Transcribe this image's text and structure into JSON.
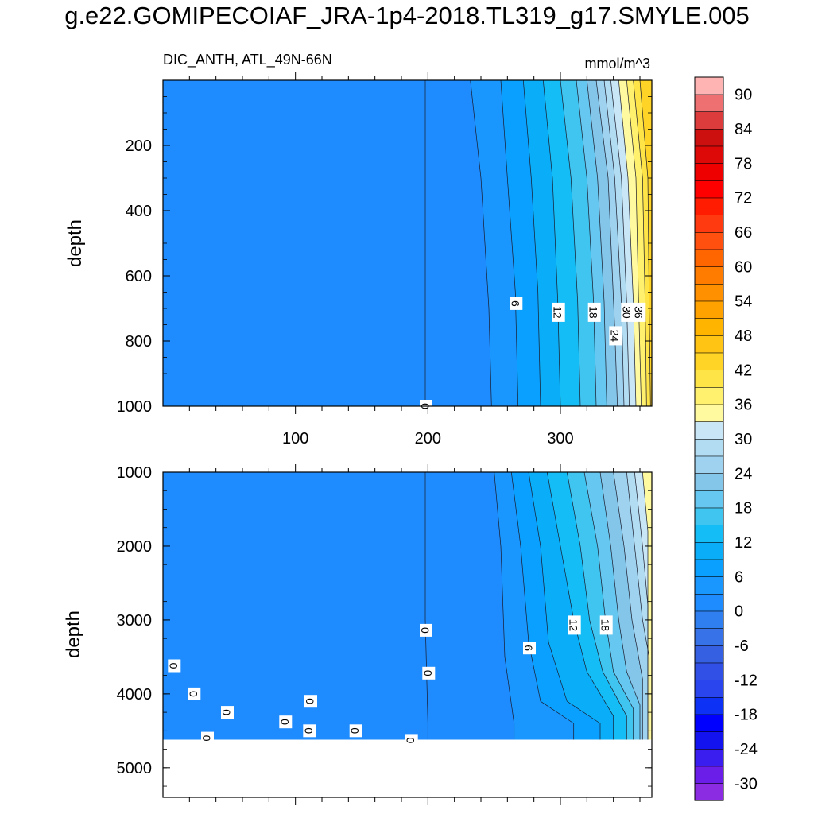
{
  "figure": {
    "title": "g.e22.GOMIPECOIAF_JRA-1p4-2018.TL319_g17.SMYLE.005"
  },
  "top_panel": {
    "left_label": "DIC_ANTH, ATL_49N-66N",
    "right_label": "mmol/m^3"
  },
  "colorbar": {
    "levels": [
      -33,
      -30,
      -27,
      -24,
      -21,
      -18,
      -15,
      -12,
      -9,
      -6,
      -3,
      0,
      3,
      6,
      9,
      12,
      15,
      18,
      21,
      24,
      27,
      30,
      33,
      36,
      39,
      42,
      45,
      48,
      51,
      54,
      57,
      60,
      63,
      66,
      69,
      72,
      75,
      78,
      81,
      84,
      87,
      90,
      93
    ],
    "tick_labels": [
      "-30",
      "-24",
      "-18",
      "-12",
      "-6",
      "0",
      "6",
      "12",
      "18",
      "24",
      "30",
      "36",
      "42",
      "48",
      "54",
      "60",
      "66",
      "72",
      "78",
      "84",
      "90"
    ],
    "colors": [
      "#8b2be2",
      "#6a1ee8",
      "#3a1ef0",
      "#1313ef",
      "#0000ff",
      "#0e32f5",
      "#2a45ee",
      "#3050e6",
      "#3560e2",
      "#3872e8",
      "#2f7ff0",
      "#1e8cff",
      "#1a96ff",
      "#0aa0ff",
      "#0aaef8",
      "#14bdf5",
      "#40c4f0",
      "#66c8f0",
      "#84c6ea",
      "#9ed2ee",
      "#b2dcf2",
      "#c8e6f6",
      "#fffaa0",
      "#fff06e",
      "#ffe448",
      "#ffd426",
      "#ffc414",
      "#ffb400",
      "#ffa200",
      "#ff9000",
      "#ff7c00",
      "#ff6600",
      "#ff5010",
      "#ff3a10",
      "#ff1c00",
      "#ff0000",
      "#ee0000",
      "#dd0808",
      "#cc1010",
      "#dc3c3c",
      "#ee7070",
      "#ffb4b4"
    ]
  },
  "chart_data": [
    {
      "type": "contour",
      "panel": "top",
      "xlim": [
        0,
        369
      ],
      "ylim": [
        1000,
        0
      ],
      "ylabel": "depth",
      "xticks": [
        "100",
        "200",
        "300"
      ],
      "yticks": [
        "200",
        "400",
        "600",
        "800",
        "1000"
      ],
      "contours": [
        {
          "level": 0,
          "label": "0",
          "points": [
            [
              198,
              0
            ],
            [
              198,
              1000
            ]
          ]
        },
        {
          "level": 3,
          "points": [
            [
              232,
              0
            ],
            [
              240,
              300
            ],
            [
              246,
              700
            ],
            [
              248,
              1000
            ]
          ]
        },
        {
          "level": 6,
          "label": "6",
          "points": [
            [
              255,
              0
            ],
            [
              260,
              300
            ],
            [
              266,
              650
            ],
            [
              268,
              1000
            ]
          ]
        },
        {
          "level": 9,
          "points": [
            [
              272,
              0
            ],
            [
              278,
              300
            ],
            [
              283,
              650
            ],
            [
              285,
              1000
            ]
          ]
        },
        {
          "level": 12,
          "label": "12",
          "points": [
            [
              287,
              0
            ],
            [
              294,
              300
            ],
            [
              298,
              680
            ],
            [
              300,
              1000
            ]
          ]
        },
        {
          "level": 15,
          "points": [
            [
              300,
              0
            ],
            [
              308,
              300
            ],
            [
              313,
              680
            ],
            [
              315,
              1000
            ]
          ]
        },
        {
          "level": 18,
          "label": "18",
          "points": [
            [
              312,
              0
            ],
            [
              320,
              300
            ],
            [
              325,
              680
            ],
            [
              327,
              1000
            ]
          ]
        },
        {
          "level": 21,
          "points": [
            [
              320,
              0
            ],
            [
              328,
              300
            ],
            [
              333,
              680
            ],
            [
              335,
              1000
            ]
          ]
        },
        {
          "level": 24,
          "label": "24",
          "points": [
            [
              327,
              0
            ],
            [
              336,
              300
            ],
            [
              341,
              760
            ],
            [
              343,
              1000
            ]
          ]
        },
        {
          "level": 27,
          "points": [
            [
              333,
              0
            ],
            [
              341,
              300
            ],
            [
              346,
              680
            ],
            [
              348,
              1000
            ]
          ]
        },
        {
          "level": 30,
          "label": "30",
          "points": [
            [
              338,
              0
            ],
            [
              346,
              300
            ],
            [
              350,
              680
            ],
            [
              352,
              1000
            ]
          ]
        },
        {
          "level": 33,
          "points": [
            [
              344,
              0
            ],
            [
              351,
              300
            ],
            [
              355,
              680
            ],
            [
              357,
              1000
            ]
          ]
        },
        {
          "level": 36,
          "label": "36",
          "points": [
            [
              350,
              0
            ],
            [
              357,
              300
            ],
            [
              359,
              680
            ],
            [
              361,
              1000
            ]
          ]
        },
        {
          "level": 39,
          "points": [
            [
              355,
              0
            ],
            [
              362,
              300
            ],
            [
              364,
              700
            ],
            [
              365,
              1000
            ]
          ]
        },
        {
          "level": 42,
          "points": [
            [
              360,
              0
            ],
            [
              366,
              300
            ],
            [
              367,
              700
            ],
            [
              368,
              1000
            ]
          ]
        }
      ]
    },
    {
      "type": "contour",
      "panel": "bottom",
      "xlim": [
        0,
        369
      ],
      "ylim": [
        5400,
        1000
      ],
      "ylabel": "depth",
      "yticks": [
        "1000",
        "2000",
        "3000",
        "4000",
        "5000"
      ],
      "valid_bottom": 4620,
      "contours": [
        {
          "level": 0,
          "label": "0",
          "points": [
            [
              198,
              1000
            ],
            [
              198,
              3000
            ],
            [
              200,
              4400
            ]
          ]
        },
        {
          "level": 3,
          "points": [
            [
              250,
              1000
            ],
            [
              255,
              2000
            ],
            [
              258,
              3500
            ],
            [
              265,
              4400
            ]
          ]
        },
        {
          "level": 6,
          "label": "6",
          "points": [
            [
              263,
              1000
            ],
            [
              270,
              2000
            ],
            [
              276,
              3300
            ],
            [
              285,
              4100
            ],
            [
              310,
              4400
            ]
          ]
        },
        {
          "level": 9,
          "points": [
            [
              276,
              1000
            ],
            [
              285,
              2000
            ],
            [
              291,
              3300
            ],
            [
              305,
              4100
            ],
            [
              330,
              4400
            ]
          ]
        },
        {
          "level": 12,
          "label": "12",
          "points": [
            [
              290,
              1000
            ],
            [
              300,
              2000
            ],
            [
              310,
              3000
            ],
            [
              320,
              3700
            ],
            [
              340,
              4300
            ]
          ]
        },
        {
          "level": 15,
          "points": [
            [
              305,
              1000
            ],
            [
              315,
              2000
            ],
            [
              322,
              3000
            ],
            [
              332,
              3700
            ],
            [
              350,
              4300
            ]
          ]
        },
        {
          "level": 18,
          "label": "18",
          "points": [
            [
              318,
              1000
            ],
            [
              328,
              2000
            ],
            [
              334,
              3000
            ],
            [
              340,
              3700
            ],
            [
              355,
              4200
            ]
          ]
        },
        {
          "level": 21,
          "points": [
            [
              330,
              1000
            ],
            [
              338,
              2000
            ],
            [
              344,
              3000
            ],
            [
              350,
              3700
            ],
            [
              360,
              4150
            ]
          ]
        },
        {
          "level": 24,
          "points": [
            [
              340,
              1000
            ],
            [
              348,
              2000
            ],
            [
              354,
              3000
            ],
            [
              362,
              3800
            ]
          ]
        },
        {
          "level": 27,
          "points": [
            [
              350,
              1000
            ],
            [
              356,
              2000
            ],
            [
              362,
              3000
            ],
            [
              367,
              3500
            ]
          ]
        },
        {
          "level": 30,
          "points": [
            [
              356,
              1000
            ],
            [
              362,
              2000
            ],
            [
              366,
              2800
            ]
          ]
        },
        {
          "level": 33,
          "points": [
            [
              362,
              1000
            ],
            [
              366,
              1800
            ]
          ]
        }
      ],
      "zero_labels": [
        {
          "x": 8,
          "y": 3620
        },
        {
          "x": 23,
          "y": 4000
        },
        {
          "x": 48,
          "y": 4250
        },
        {
          "x": 33,
          "y": 4600
        },
        {
          "x": 92,
          "y": 4380
        },
        {
          "x": 111,
          "y": 4100
        },
        {
          "x": 110,
          "y": 4500
        },
        {
          "x": 145,
          "y": 4500
        },
        {
          "x": 187,
          "y": 4630
        },
        {
          "x": 200,
          "y": 3720
        }
      ]
    }
  ]
}
